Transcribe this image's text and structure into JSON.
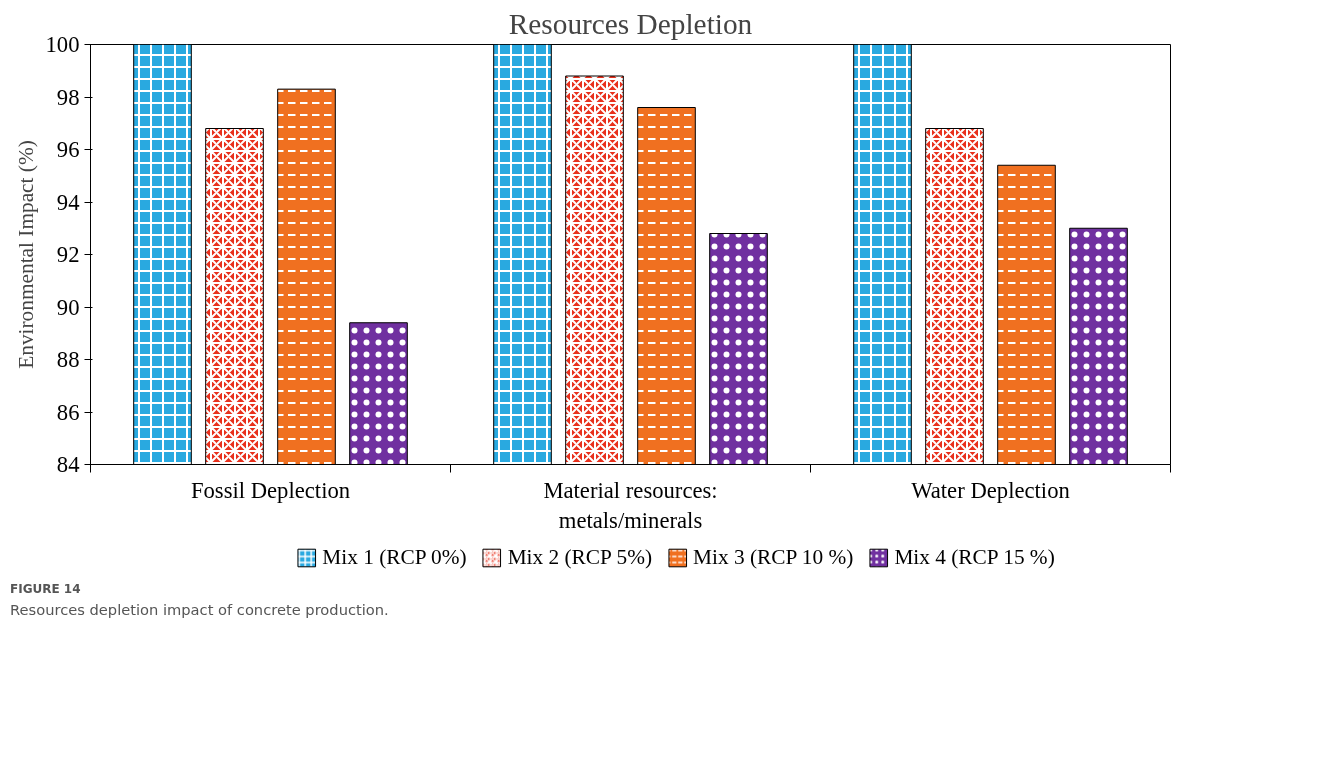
{
  "chart_data": {
    "type": "bar",
    "title": "Resources Depletion",
    "ylabel": "Environmental Impact (%)",
    "categories": [
      "Fossil Deplection",
      "Material resources: metals/minerals",
      "Water Deplection"
    ],
    "series": [
      {
        "name": "Mix 1 (RCP 0%)",
        "color": "#29a9e0",
        "values": [
          100,
          100,
          100
        ]
      },
      {
        "name": "Mix 2 (RCP 5%)",
        "color": "#e8301c",
        "values": [
          96.8,
          98.8,
          96.8
        ]
      },
      {
        "name": "Mix 3 (RCP 10 %)",
        "color": "#f07020",
        "values": [
          98.3,
          97.6,
          95.4
        ]
      },
      {
        "name": "Mix 4 (RCP 15 %)",
        "color": "#7030a0",
        "values": [
          89.4,
          92.8,
          93.0
        ]
      }
    ],
    "ylim": [
      84,
      100
    ],
    "yticks": [
      84,
      86,
      88,
      90,
      92,
      94,
      96,
      98,
      100
    ],
    "grid": false,
    "legend": "bottom",
    "annotations": [
      "FIGURE 14",
      "Resources depletion impact of concrete production."
    ]
  }
}
